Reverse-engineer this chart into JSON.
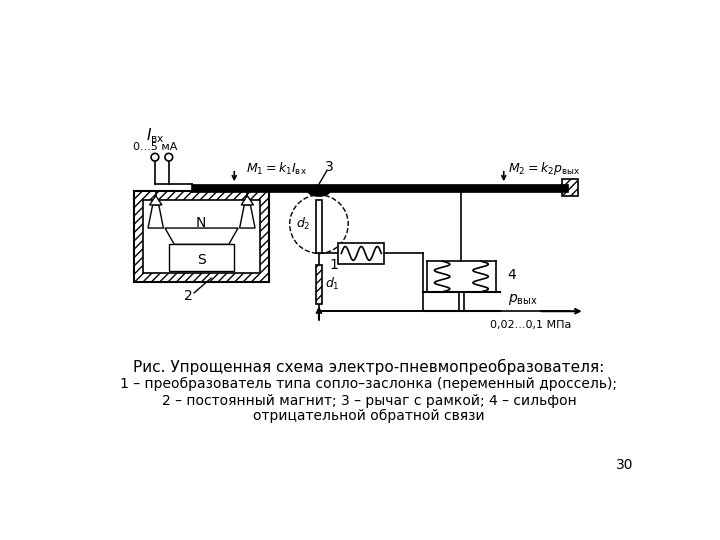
{
  "title_line1": "Рис. Упрощенная схема электро-пневмопреобразователя:",
  "title_line2": "1 – преобразователь типа сопло–заслонка (переменный дроссель);",
  "title_line3": "2 – постоянный магнит; 3 – рычаг с рамкой; 4 – сильфон",
  "title_line4": "отрицательной обратной связи",
  "page_num": "30",
  "bg_color": "#ffffff",
  "line_color": "#000000"
}
